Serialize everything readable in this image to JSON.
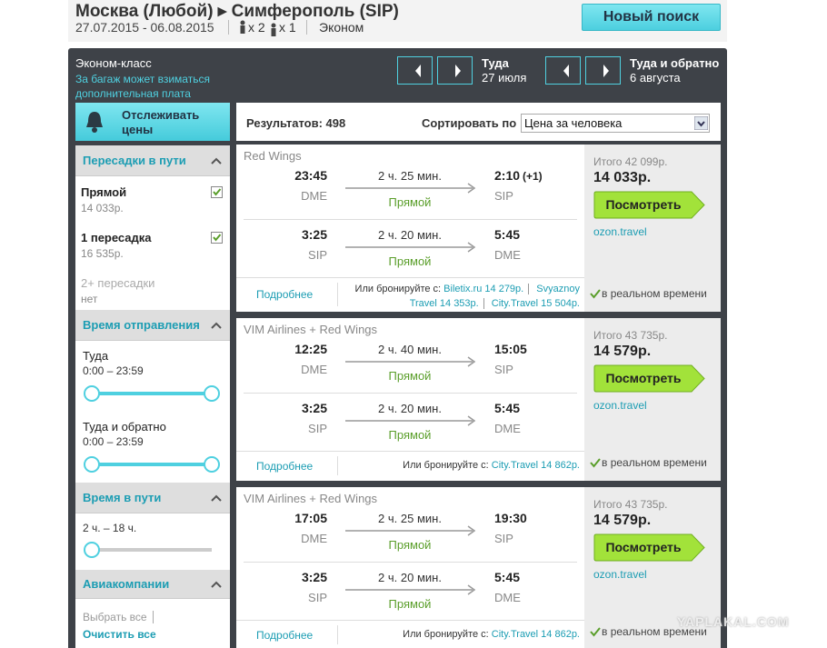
{
  "header": {
    "route": "Москва (Любой) ▸ Симферополь (SIP)",
    "dates": "27.07.2015 - 06.08.2015",
    "adults": "x 2",
    "children": "x 1",
    "cabin": "Эконом",
    "new_search": "Новый поиск"
  },
  "topbar": {
    "cabin": "Эконом-класс",
    "baggage_note": "За багаж может взиматься дополнительная плата",
    "outbound": {
      "label": "Туда",
      "date": "27 июля"
    },
    "return": {
      "label": "Туда и обратно",
      "date": "6 августа"
    }
  },
  "sidebar": {
    "track_prices": "Отслеживать цены",
    "stops": {
      "title": "Пересадки в пути",
      "options": [
        {
          "label": "Прямой",
          "price": "14 033р.",
          "enabled": true,
          "checked": true
        },
        {
          "label": "1 пересадка",
          "price": "16 535р.",
          "enabled": true,
          "checked": true
        },
        {
          "label": "2+ пересадки",
          "price": "нет",
          "enabled": false,
          "checked": false
        }
      ]
    },
    "departure": {
      "title": "Время отправления",
      "ranges": [
        {
          "label": "Туда",
          "range": "0:00 – 23:59"
        },
        {
          "label": "Туда и обратно",
          "range": "0:00 – 23:59"
        }
      ]
    },
    "duration": {
      "title": "Время в пути",
      "range": "2 ч. – 18 ч."
    },
    "airlines": {
      "title": "Авиакомпании",
      "select_all": "Выбрать все",
      "clear_all": "Очистить все"
    }
  },
  "results": {
    "count": "Результатов: 498",
    "sort_label": "Сортировать по",
    "sort_value": "Цена за человека",
    "items": [
      {
        "airline": "Red Wings",
        "legs": [
          {
            "dep_time": "23:45",
            "dep_airport": "DME",
            "duration": "2 ч. 25 мин.",
            "stops": "Прямой",
            "arr_time": "2:10",
            "day_offset": "(+1)",
            "arr_airport": "SIP"
          },
          {
            "dep_time": "3:25",
            "dep_airport": "SIP",
            "duration": "2 ч. 20 мин.",
            "stops": "Прямой",
            "arr_time": "5:45",
            "arr_airport": "DME"
          }
        ],
        "details": "Подробнее",
        "book_label": "Или бронируйте с:",
        "book_links": [
          "Biletix.ru 14 279р.",
          "Svyaznoy Travel 14 353р.",
          "City.Travel 15 504р."
        ],
        "total": "Итого 42 099р.",
        "price": "14 033р.",
        "view": "Посмотреть",
        "agent": "ozon.travel",
        "realtime": "в реальном времени"
      },
      {
        "airline": "VIM Airlines + Red Wings",
        "legs": [
          {
            "dep_time": "12:25",
            "dep_airport": "DME",
            "duration": "2 ч. 40 мин.",
            "stops": "Прямой",
            "arr_time": "15:05",
            "arr_airport": "SIP"
          },
          {
            "dep_time": "3:25",
            "dep_airport": "SIP",
            "duration": "2 ч. 20 мин.",
            "stops": "Прямой",
            "arr_time": "5:45",
            "arr_airport": "DME"
          }
        ],
        "details": "Подробнее",
        "book_label": "Или бронируйте с:",
        "book_links": [
          "City.Travel 14 862р."
        ],
        "total": "Итого 43 735р.",
        "price": "14 579р.",
        "view": "Посмотреть",
        "agent": "ozon.travel",
        "realtime": "в реальном времени"
      },
      {
        "airline": "VIM Airlines + Red Wings",
        "legs": [
          {
            "dep_time": "17:05",
            "dep_airport": "DME",
            "duration": "2 ч. 25 мин.",
            "stops": "Прямой",
            "arr_time": "19:30",
            "arr_airport": "SIP"
          },
          {
            "dep_time": "3:25",
            "dep_airport": "SIP",
            "duration": "2 ч. 20 мин.",
            "stops": "Прямой",
            "arr_time": "5:45",
            "arr_airport": "DME"
          }
        ],
        "details": "Подробнее",
        "book_label": "Или бронируйте с:",
        "book_links": [
          "City.Travel 14 862р."
        ],
        "total": "Итого 43 735р.",
        "price": "14 579р.",
        "view": "Посмотреть",
        "agent": "ozon.travel",
        "realtime": "в реальном времени"
      }
    ]
  },
  "watermark": "YAPLAKAL.COM"
}
